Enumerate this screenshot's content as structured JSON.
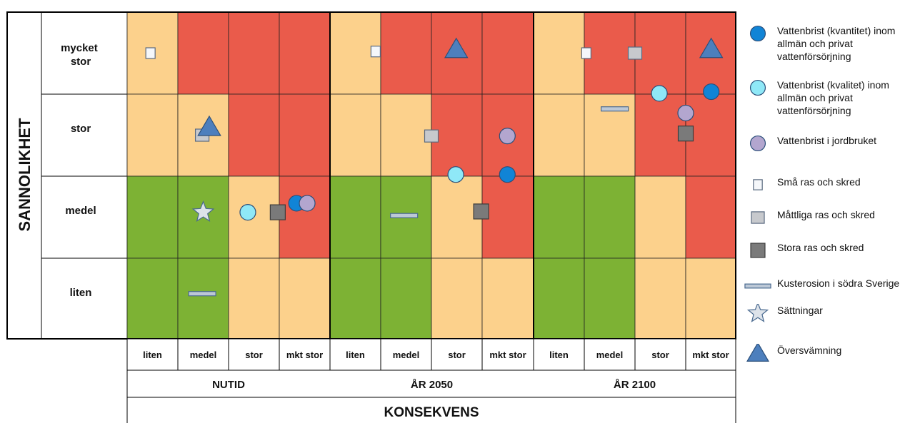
{
  "y_title": "SANNOLIKHET",
  "x_title": "KONSEKVENS",
  "rows": [
    "mycket stor",
    "stor",
    "medel",
    "liten"
  ],
  "period_cols": [
    "liten",
    "medel",
    "stor",
    "mkt stor"
  ],
  "periods": [
    "NUTID",
    "ÅR 2050",
    "ÅR 2100"
  ],
  "colors": {
    "green": "#7db234",
    "yellow": "#fcd18c",
    "red": "#ea5b4b",
    "marker_blue": "#1184d6",
    "marker_cyan": "#8fe8f7",
    "marker_purple": "#b3a6cf",
    "marker_small": "#f5f7fa",
    "marker_mid": "#c7c9cd",
    "marker_large": "#7a7a7a",
    "marker_erosion": "#bcc8d6",
    "marker_star": "#dde3ea",
    "marker_triangle": "#4d7fbd"
  },
  "grid": [
    [
      "yellow",
      "red",
      "red",
      "red",
      "yellow",
      "red",
      "red",
      "red",
      "yellow",
      "red",
      "red",
      "red"
    ],
    [
      "yellow",
      "yellow",
      "red",
      "red",
      "yellow",
      "yellow",
      "red",
      "red",
      "yellow",
      "yellow",
      "red",
      "red"
    ],
    [
      "green",
      "green",
      "yellow",
      "red",
      "green",
      "green",
      "yellow",
      "red",
      "green",
      "green",
      "yellow",
      "red"
    ],
    [
      "green",
      "green",
      "yellow",
      "yellow",
      "green",
      "green",
      "yellow",
      "yellow",
      "green",
      "green",
      "yellow",
      "yellow"
    ]
  ],
  "markers": [
    {
      "type": "small",
      "col": 0,
      "row": 0
    },
    {
      "type": "mid",
      "col": 1,
      "row": 1
    },
    {
      "type": "triangle",
      "col": 1,
      "row": 1
    },
    {
      "type": "star",
      "col": 1,
      "row": 2
    },
    {
      "type": "cyan",
      "col": 2,
      "row": 2
    },
    {
      "type": "large",
      "col": 3,
      "row": 2
    },
    {
      "type": "blue",
      "col": 3,
      "row": 2
    },
    {
      "type": "purple",
      "col": 3,
      "row": 2
    },
    {
      "type": "erosion",
      "col": 1,
      "row": 3
    },
    {
      "type": "small",
      "col": 5,
      "row": 0
    },
    {
      "type": "triangle",
      "col": 6,
      "row": 0
    },
    {
      "type": "mid",
      "col": 6,
      "row": 1
    },
    {
      "type": "purple",
      "col": 7,
      "row": 1
    },
    {
      "type": "cyan",
      "col": 6,
      "row": 1
    },
    {
      "type": "blue",
      "col": 7,
      "row": 1
    },
    {
      "type": "erosion",
      "col": 5,
      "row": 2
    },
    {
      "type": "large",
      "col": 6,
      "row": 2
    },
    {
      "type": "small",
      "col": 9,
      "row": 0
    },
    {
      "type": "mid",
      "col": 10,
      "row": 0
    },
    {
      "type": "triangle",
      "col": 11,
      "row": 0
    },
    {
      "type": "cyan",
      "col": 10,
      "row": 0
    },
    {
      "type": "blue",
      "col": 11,
      "row": 0
    },
    {
      "type": "erosion",
      "col": 9,
      "row": 1
    },
    {
      "type": "purple",
      "col": 11,
      "row": 1
    },
    {
      "type": "large",
      "col": 11,
      "row": 1
    }
  ],
  "legend": [
    {
      "icon": "blue",
      "label": "Vattenbrist (kvantitet) inom allmän och privat vattenförsörjning"
    },
    {
      "icon": "cyan",
      "label": "Vattenbrist (kvalitet) inom allmän och privat vattenförsörjning"
    },
    {
      "icon": "purple",
      "label": "Vattenbrist i jordbruket"
    },
    {
      "icon": "small",
      "label": "Små ras och skred"
    },
    {
      "icon": "mid",
      "label": "Måttliga ras och skred"
    },
    {
      "icon": "large",
      "label": "Stora ras och skred"
    },
    {
      "icon": "erosion",
      "label": "Kusterosion i södra Sverige"
    },
    {
      "icon": "star",
      "label": "Sättningar"
    },
    {
      "icon": "triangle",
      "label": "Översvämning"
    }
  ]
}
